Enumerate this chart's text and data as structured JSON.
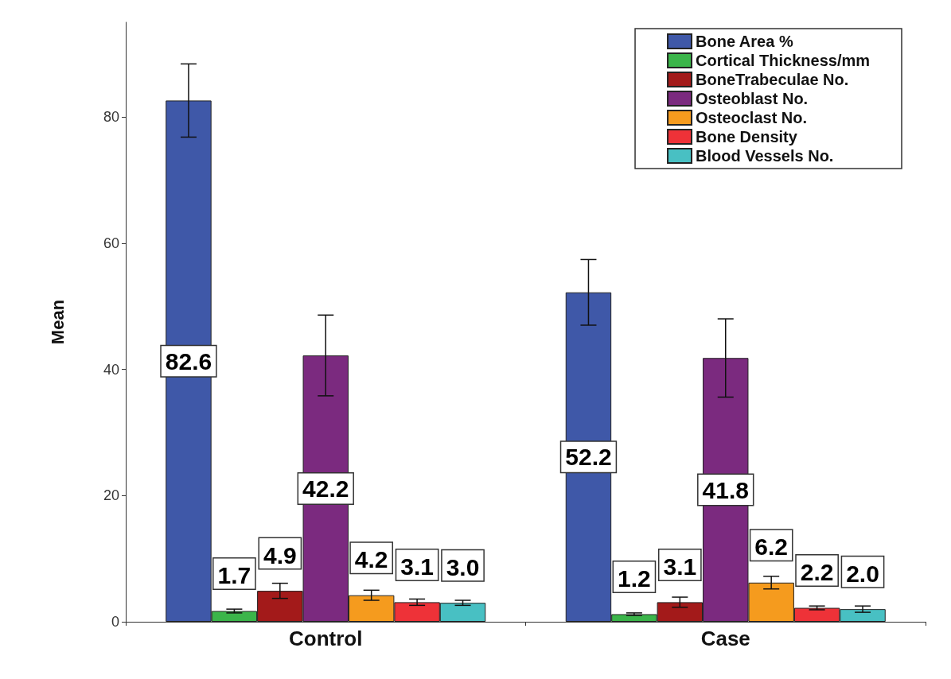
{
  "chart_data": {
    "type": "bar",
    "ylabel": "Mean",
    "categories": [
      "Control",
      "Case"
    ],
    "series": [
      {
        "name": "Bone Area %",
        "color": "#3f58a8",
        "values": [
          82.6,
          52.2
        ],
        "errors": [
          5.8,
          5.2
        ],
        "value_labels": [
          "82.6",
          "52.2"
        ]
      },
      {
        "name": "Cortical Thickness/mm",
        "color": "#3bb54a",
        "values": [
          1.7,
          1.2
        ],
        "errors": [
          0.3,
          0.2
        ],
        "value_labels": [
          "1.7",
          "1.2"
        ]
      },
      {
        "name": "BoneTrabeculae No.",
        "color": "#a31a1a",
        "values": [
          4.9,
          3.1
        ],
        "errors": [
          1.2,
          0.8
        ],
        "value_labels": [
          "4.9",
          "3.1"
        ]
      },
      {
        "name": "Osteoblast No.",
        "color": "#7b2a7f",
        "values": [
          42.2,
          41.8
        ],
        "errors": [
          6.4,
          6.2
        ],
        "value_labels": [
          "42.2",
          "41.8"
        ]
      },
      {
        "name": "Osteoclast No.",
        "color": "#f59b1e",
        "values": [
          4.2,
          6.2
        ],
        "errors": [
          0.8,
          1.0
        ],
        "value_labels": [
          "4.2",
          "6.2"
        ]
      },
      {
        "name": "Bone Density",
        "color": "#ee3238",
        "values": [
          3.1,
          2.2
        ],
        "errors": [
          0.5,
          0.3
        ],
        "value_labels": [
          "3.1",
          "2.2"
        ]
      },
      {
        "name": "Blood Vessels No.",
        "color": "#48c0c3",
        "values": [
          3.0,
          2.0
        ],
        "errors": [
          0.4,
          0.5
        ],
        "value_labels": [
          "3.0",
          "2.0"
        ]
      }
    ],
    "ylim": [
      0,
      95
    ],
    "yticks": [
      0,
      20,
      40,
      60,
      80
    ],
    "grid": false,
    "legend": "top right"
  }
}
